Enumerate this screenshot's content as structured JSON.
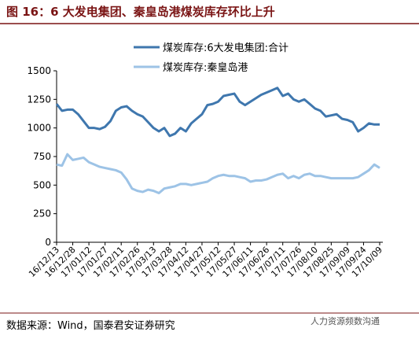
{
  "header": {
    "title": "图 16：6 大发电集团、秦皇岛港煤炭库存环比上升"
  },
  "chart_data": {
    "type": "line",
    "categories": [
      "16/12/13",
      null,
      null,
      "16/12/28",
      null,
      null,
      "17/01/12",
      null,
      null,
      "17/01/27",
      null,
      null,
      "17/02/11",
      null,
      null,
      "17/02/26",
      null,
      null,
      "17/03/13",
      null,
      null,
      "17/03/28",
      null,
      null,
      "17/04/12",
      null,
      null,
      "17/04/27",
      null,
      null,
      "17/05/12",
      null,
      null,
      "17/05/27",
      null,
      null,
      "17/06/11",
      null,
      null,
      "17/06/26",
      null,
      null,
      "17/07/11",
      null,
      null,
      "17/07/26",
      null,
      null,
      "17/08/10",
      null,
      null,
      "17/08/25",
      null,
      null,
      "17/09/09",
      null,
      null,
      "17/09/24",
      null,
      null,
      "17/10/09"
    ],
    "series": [
      {
        "name": "煤炭库存:6大发电集团:合计",
        "color": "#3f77ae",
        "values": [
          1210,
          1150,
          1160,
          1160,
          1120,
          1060,
          1000,
          1000,
          990,
          1010,
          1060,
          1150,
          1180,
          1190,
          1150,
          1120,
          1100,
          1050,
          1000,
          970,
          1000,
          930,
          950,
          1000,
          970,
          1040,
          1080,
          1120,
          1200,
          1210,
          1230,
          1280,
          1290,
          1300,
          1230,
          1200,
          1230,
          1260,
          1290,
          1310,
          1330,
          1350,
          1280,
          1300,
          1250,
          1230,
          1250,
          1210,
          1170,
          1150,
          1100,
          1110,
          1120,
          1080,
          1070,
          1050,
          970,
          1000,
          1040,
          1030,
          1030
        ]
      },
      {
        "name": "煤炭库存:秦皇岛港",
        "color": "#9dc3e6",
        "values": [
          680,
          670,
          770,
          720,
          730,
          740,
          700,
          680,
          660,
          650,
          640,
          630,
          610,
          550,
          470,
          450,
          440,
          460,
          450,
          430,
          470,
          480,
          490,
          510,
          510,
          500,
          510,
          520,
          530,
          560,
          580,
          590,
          580,
          580,
          570,
          560,
          530,
          540,
          540,
          550,
          570,
          590,
          600,
          560,
          580,
          560,
          590,
          600,
          580,
          580,
          570,
          560,
          560,
          560,
          560,
          560,
          570,
          600,
          630,
          680,
          650
        ]
      }
    ],
    "ylim": [
      0,
      1500
    ],
    "yticks": [
      0,
      250,
      500,
      750,
      1000,
      1250,
      1500
    ]
  },
  "footer": {
    "source": "数据来源：Wind，国泰君安证券研究",
    "watermark": "人力资源频数沟通"
  }
}
